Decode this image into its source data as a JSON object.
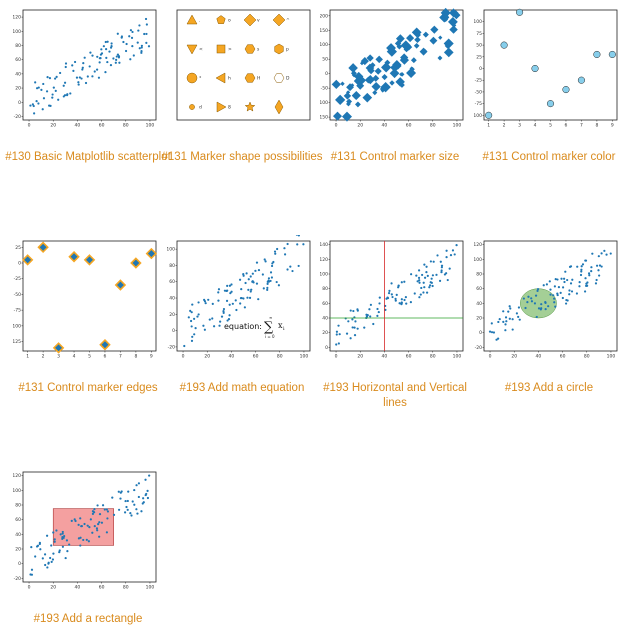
{
  "gallery": [
    {
      "caption": "#130 Basic Matplotlib scatterplot",
      "kind": "basic"
    },
    {
      "caption": "#131 Marker shape possibilities",
      "kind": "shapes"
    },
    {
      "caption": "#131 Control marker size",
      "kind": "size"
    },
    {
      "caption": "#131 Control marker color",
      "kind": "color"
    },
    {
      "caption": "#131 Control marker edges",
      "kind": "edges"
    },
    {
      "caption": "#193 Add math equation",
      "kind": "equation"
    },
    {
      "caption": "#193 Horizontal and Vertical lines",
      "kind": "hvlines"
    },
    {
      "caption": "#193 Add a circle",
      "kind": "circle"
    },
    {
      "caption": "#193 Add a rectangle",
      "kind": "rectangle"
    }
  ],
  "equation_text": "equation:",
  "math": {
    "sum_top": "∞",
    "sum": "∑",
    "sum_bottom": "i = 0",
    "term": "x",
    "term_sub": "i"
  },
  "marker_shape_labels": [
    ".",
    "o",
    "v",
    "^",
    "<",
    ">",
    "s",
    "p",
    "*",
    "h",
    "H",
    "D",
    "d",
    "8"
  ],
  "colors": {
    "accent": "#d98b1e",
    "series": "#1f77b4",
    "marker_edge": "#f5a623",
    "light_blue": "#87ceeb",
    "hline": "#2ca02c",
    "vline": "#d62728",
    "circle_fill": "#7dbb6a",
    "rect_fill": "#f08080"
  },
  "chart_data": [
    {
      "type": "scatter",
      "id": "basic",
      "x_ticks": [
        "0",
        "20",
        "40",
        "60",
        "80",
        "100"
      ],
      "y_ticks": [
        "-20",
        "0",
        "20",
        "40",
        "60",
        "80",
        "100",
        "120"
      ],
      "xlim": [
        -5,
        105
      ],
      "ylim": [
        -25,
        130
      ]
    },
    {
      "type": "scatter",
      "id": "size",
      "x_ticks": [
        "0",
        "20",
        "40",
        "60",
        "80",
        "100"
      ],
      "y_ticks": [
        "-150",
        "-100",
        "-50",
        "0",
        "50",
        "100",
        "150",
        "200"
      ],
      "xlim": [
        -5,
        105
      ],
      "ylim": [
        -160,
        220
      ]
    },
    {
      "type": "scatter",
      "id": "color",
      "x": [
        1,
        2,
        3,
        4,
        5,
        6,
        7,
        8,
        9
      ],
      "y": [
        -100,
        50,
        120,
        0,
        -75,
        -45,
        -25,
        30,
        30
      ],
      "x_ticks": [
        "1",
        "2",
        "3",
        "4",
        "5",
        "6",
        "7",
        "8",
        "9"
      ],
      "y_ticks": [
        "-100",
        "-75",
        "-50",
        "-25",
        "0",
        "25",
        "50",
        "75",
        "100"
      ],
      "xlim": [
        0.7,
        9.3
      ],
      "ylim": [
        -110,
        125
      ]
    },
    {
      "type": "scatter",
      "id": "edges",
      "x": [
        1,
        2,
        3,
        4,
        5,
        6,
        7,
        8,
        9
      ],
      "y": [
        5,
        25,
        -135,
        10,
        5,
        -130,
        -35,
        0,
        15
      ],
      "x_ticks": [
        "1",
        "2",
        "3",
        "4",
        "5",
        "6",
        "7",
        "8",
        "9"
      ],
      "y_ticks": [
        "-125",
        "-100",
        "-75",
        "-50",
        "-25",
        "0",
        "25"
      ],
      "xlim": [
        0.7,
        9.3
      ],
      "ylim": [
        -140,
        35
      ]
    },
    {
      "type": "scatter",
      "id": "equation",
      "x_ticks": [
        "0",
        "20",
        "40",
        "60",
        "80",
        "100"
      ],
      "y_ticks": [
        "-20",
        "0",
        "20",
        "40",
        "60",
        "80",
        "100"
      ],
      "xlim": [
        -5,
        105
      ],
      "ylim": [
        -25,
        110
      ]
    },
    {
      "type": "scatter",
      "id": "hvlines",
      "x_ticks": [
        "0",
        "20",
        "40",
        "60",
        "80",
        "100"
      ],
      "y_ticks": [
        "0",
        "20",
        "40",
        "60",
        "80",
        "100",
        "120",
        "140"
      ],
      "xlim": [
        -5,
        105
      ],
      "ylim": [
        -5,
        145
      ],
      "hline": 40,
      "vline": 40
    },
    {
      "type": "scatter",
      "id": "circle",
      "x_ticks": [
        "0",
        "20",
        "40",
        "60",
        "80",
        "100"
      ],
      "y_ticks": [
        "-20",
        "0",
        "20",
        "40",
        "60",
        "80",
        "100",
        "120"
      ],
      "xlim": [
        -5,
        105
      ],
      "ylim": [
        -25,
        125
      ],
      "circle": {
        "cx": 40,
        "cy": 40,
        "rx": 15,
        "ry": 20
      }
    },
    {
      "type": "scatter",
      "id": "rectangle",
      "x_ticks": [
        "0",
        "20",
        "40",
        "60",
        "80",
        "100"
      ],
      "y_ticks": [
        "-20",
        "0",
        "20",
        "40",
        "60",
        "80",
        "100",
        "120"
      ],
      "xlim": [
        -5,
        105
      ],
      "ylim": [
        -25,
        125
      ],
      "rect": {
        "x0": 20,
        "y0": 25,
        "x1": 70,
        "y1": 75
      }
    }
  ]
}
